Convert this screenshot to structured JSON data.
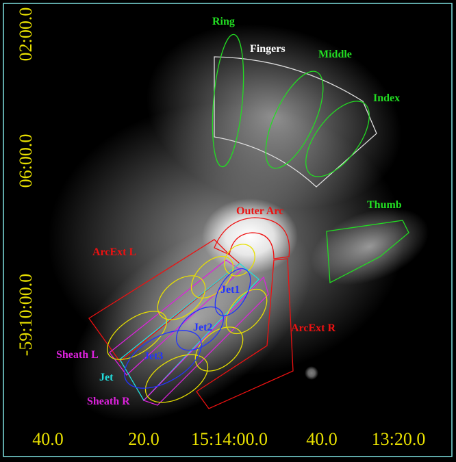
{
  "x_axis": {
    "ticks": [
      "40.0",
      "20.0",
      "15:14:00.0",
      "40.0",
      "13:20.0"
    ],
    "color": "#e8e000"
  },
  "y_axis": {
    "ticks": [
      "02:00.0",
      "06:00.0",
      "-59:10:00.0"
    ],
    "color": "#e8e000"
  },
  "regions": [
    {
      "label": "Ring",
      "color": "#22dd22"
    },
    {
      "label": "Fingers",
      "color": "#ffffff"
    },
    {
      "label": "Middle",
      "color": "#22dd22"
    },
    {
      "label": "Index",
      "color": "#22dd22"
    },
    {
      "label": "Thumb",
      "color": "#22dd22"
    },
    {
      "label": "Outer Arc",
      "color": "#ee1111"
    },
    {
      "label": "ArcExt L",
      "color": "#ee1111"
    },
    {
      "label": "ArcExt R",
      "color": "#ee1111"
    },
    {
      "label": "Jet1",
      "color": "#2233ff"
    },
    {
      "label": "Jet2",
      "color": "#2233ff"
    },
    {
      "label": "Jet3",
      "color": "#2233ff"
    },
    {
      "label": "Sheath L",
      "color": "#dd22dd"
    },
    {
      "label": "Jet",
      "color": "#22dddd"
    },
    {
      "label": "Sheath R",
      "color": "#dd22dd"
    }
  ]
}
